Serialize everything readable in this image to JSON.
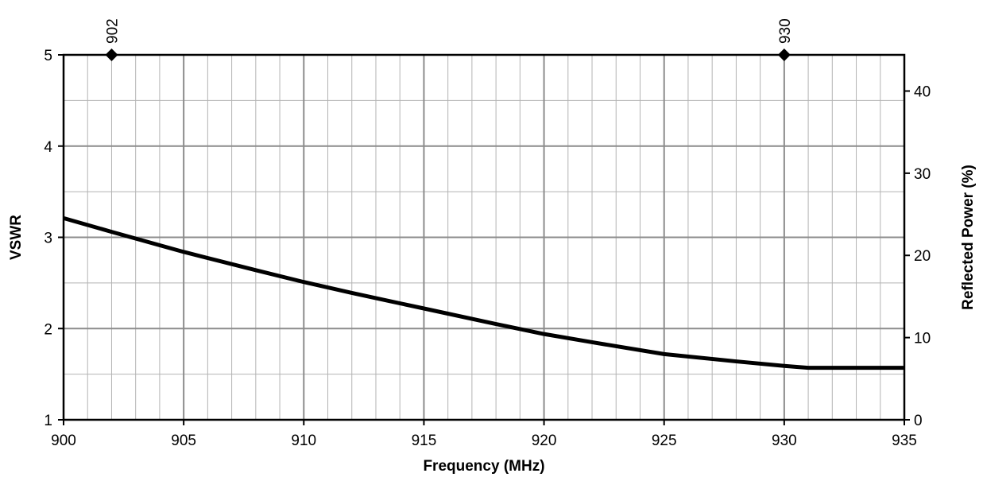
{
  "chart_data": {
    "type": "line",
    "xlabel": "Frequency (MHz)",
    "ylabel": "VSWR",
    "y2label": "Reflected Power (%)",
    "xlim": [
      900,
      935
    ],
    "ylim": [
      1,
      5
    ],
    "y2lim": [
      0,
      44.4
    ],
    "xticks": [
      900,
      905,
      910,
      915,
      920,
      925,
      930,
      935
    ],
    "yticks": [
      1,
      2,
      3,
      4,
      5
    ],
    "y2ticks": [
      0,
      10,
      20,
      30,
      40
    ],
    "grid": true,
    "series": [
      {
        "x": [
          900,
          902,
          905,
          908,
          910,
          912,
          915,
          918,
          920,
          922,
          925,
          928,
          930,
          931,
          935
        ],
        "values": [
          3.21,
          3.06,
          2.84,
          2.64,
          2.51,
          2.39,
          2.22,
          2.05,
          1.94,
          1.85,
          1.72,
          1.64,
          1.59,
          1.57,
          1.57
        ]
      }
    ],
    "markers": [
      {
        "x": 902,
        "label": "902"
      },
      {
        "x": 930,
        "label": "930"
      }
    ]
  }
}
